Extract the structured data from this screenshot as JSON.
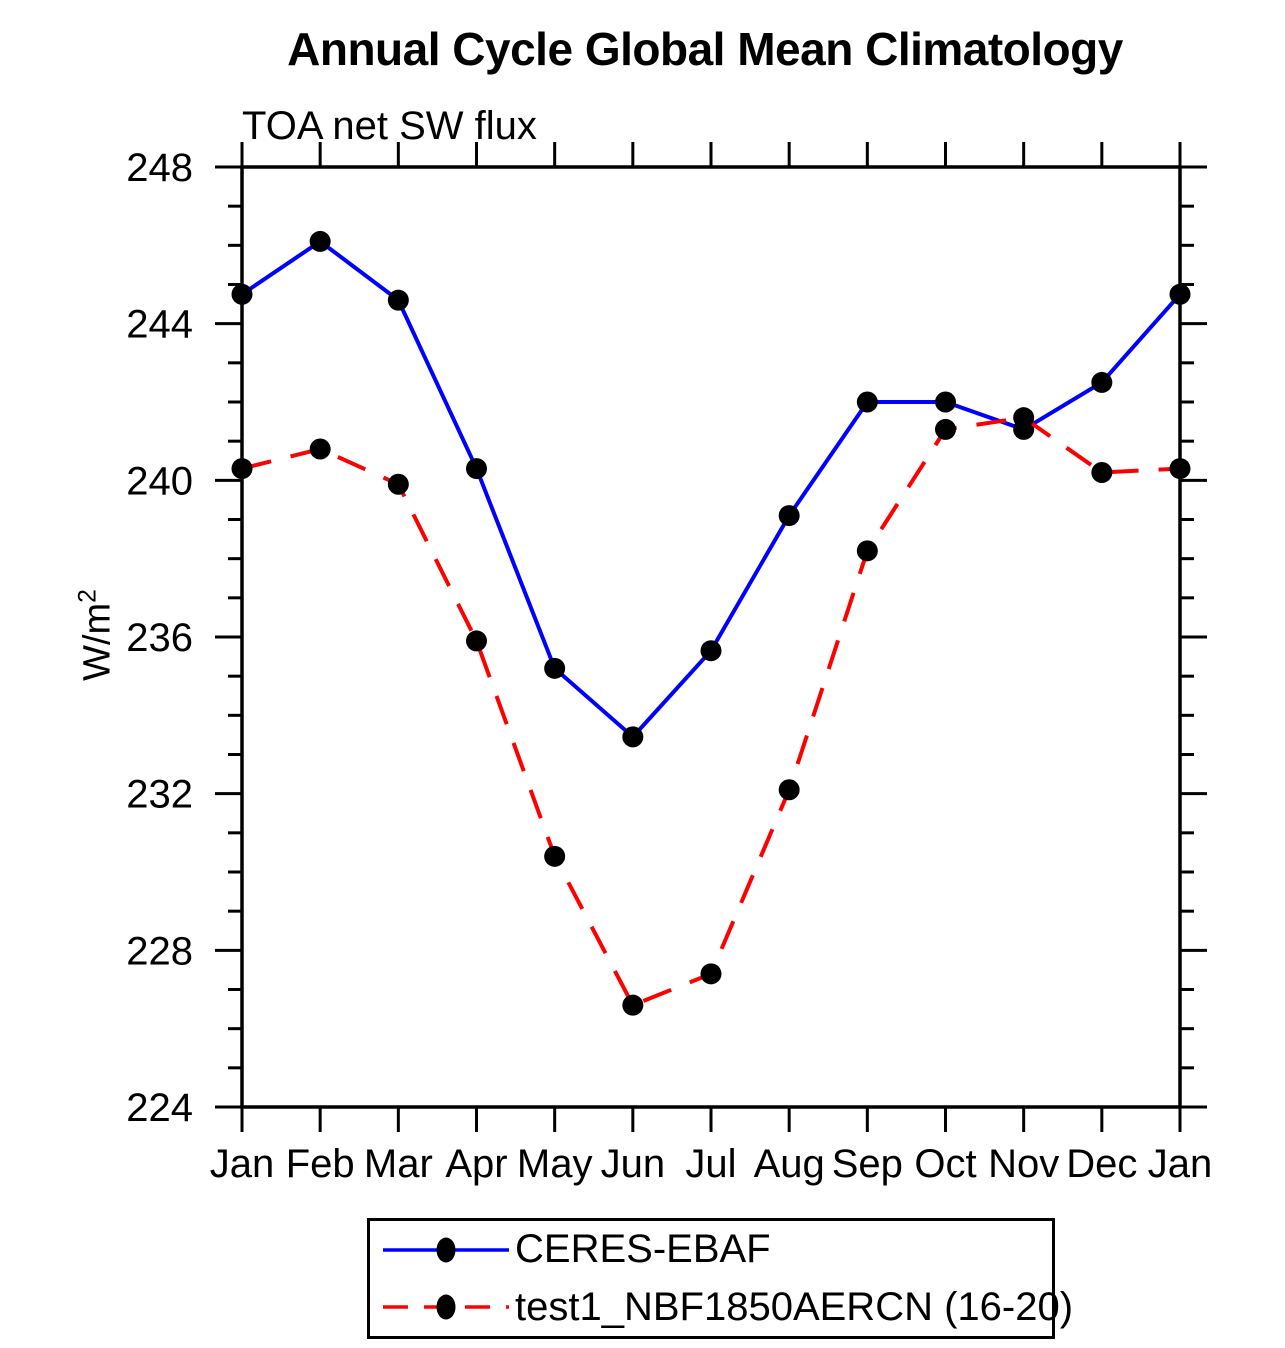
{
  "chart_data": {
    "type": "line",
    "title": "Annual Cycle Global Mean Climatology",
    "subtitle": "TOA net SW flux",
    "ylabel_base": "W/m",
    "ylabel_exponent": "2",
    "categories": [
      "Jan",
      "Feb",
      "Mar",
      "Apr",
      "May",
      "Jun",
      "Jul",
      "Aug",
      "Sep",
      "Oct",
      "Nov",
      "Dec",
      "Jan"
    ],
    "y_tick_labels": [
      "224",
      "228",
      "232",
      "236",
      "240",
      "244",
      "248"
    ],
    "ylim": [
      224,
      248
    ],
    "y_major_step": 4,
    "y_minor_step": 1,
    "grid": false,
    "legend_position": "bottom",
    "axis_color": "#000000",
    "marker_color": "#000000",
    "series": [
      {
        "name": "CERES-EBAF",
        "color": "#0000ff",
        "style": "solid",
        "values": [
          244.75,
          246.1,
          244.6,
          240.3,
          235.2,
          233.45,
          235.65,
          239.1,
          242.0,
          242.0,
          241.3,
          242.5,
          244.75
        ]
      },
      {
        "name": "test1_NBF1850AERCN (16-20)",
        "color": "#ff0000",
        "style": "dashed",
        "values": [
          240.3,
          240.8,
          239.9,
          235.9,
          230.4,
          226.6,
          227.4,
          232.1,
          238.2,
          241.3,
          241.6,
          240.2,
          240.3
        ]
      }
    ]
  }
}
